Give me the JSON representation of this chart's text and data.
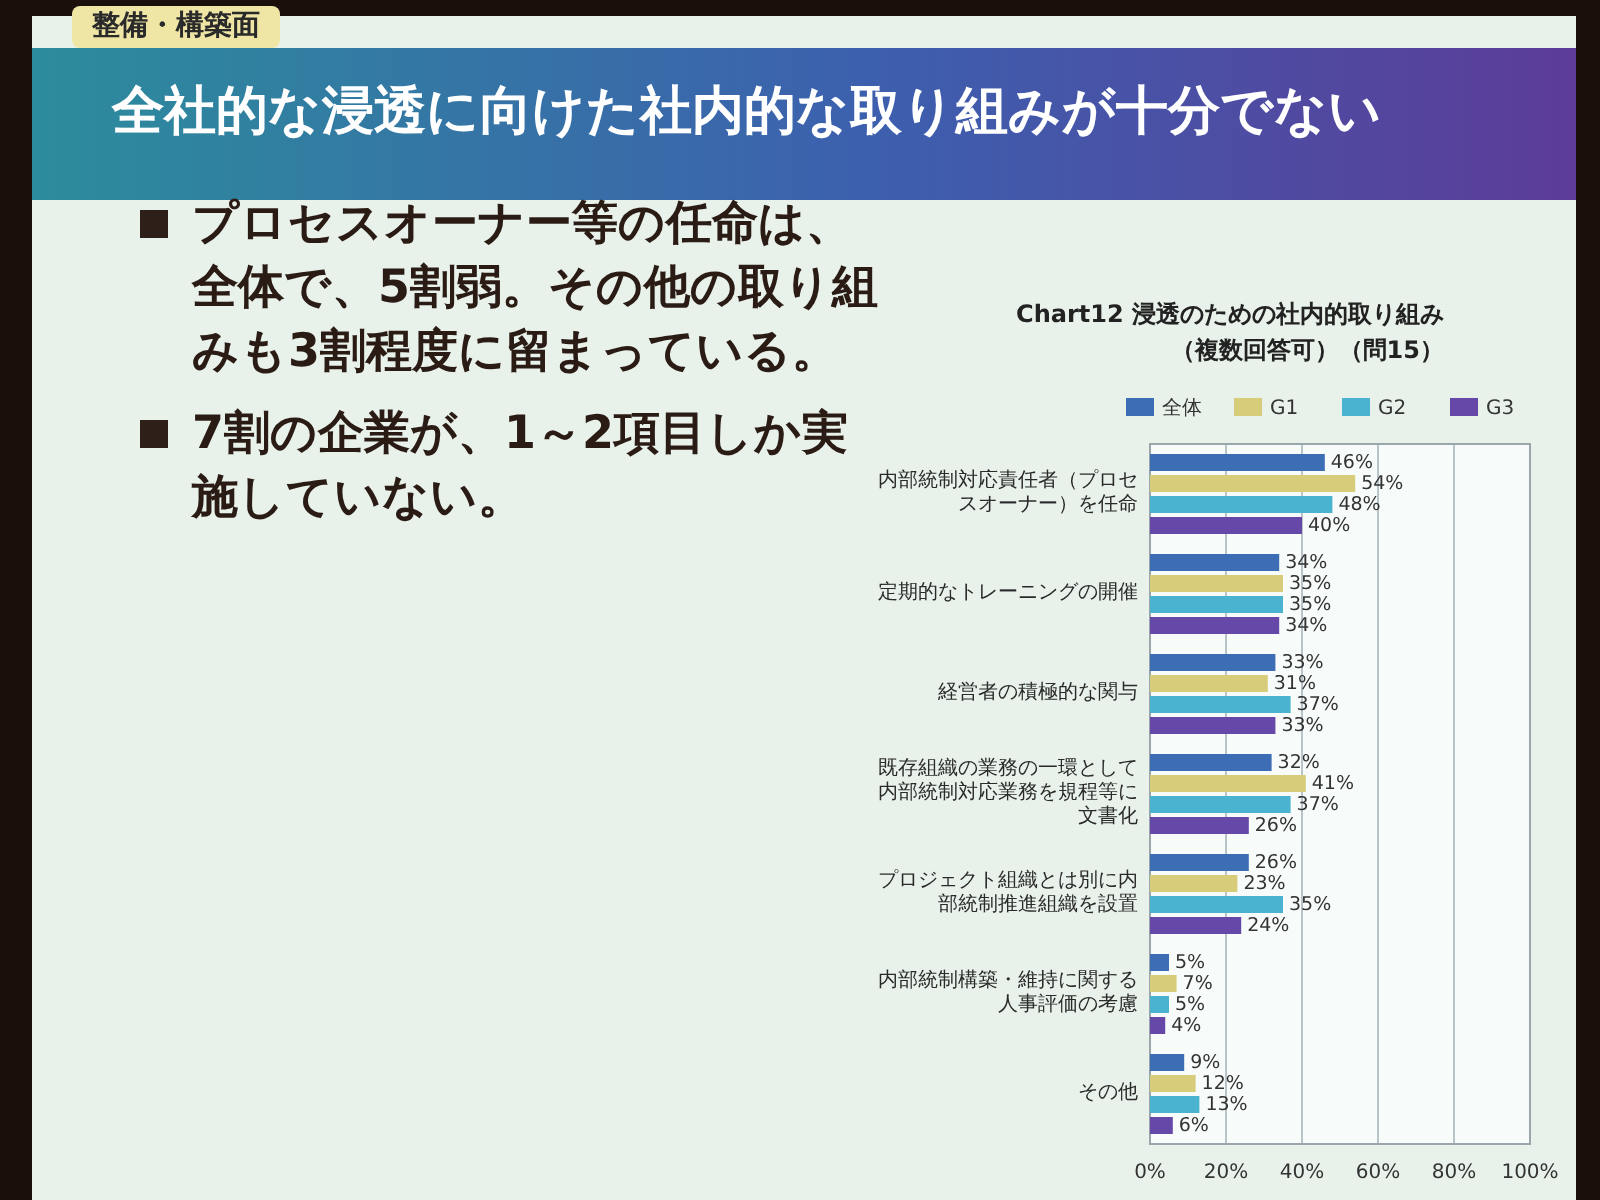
{
  "chart_data": {
    "type": "bar",
    "orientation": "horizontal",
    "title": "全社的な浸透に向けた社内的な取り組みが十分でない",
    "subtitle": "Chart12 浸透のための社内的取り組み",
    "annotations": [
      "（複数回答可）（問15）",
      "整備・構築面",
      "プロセスオーナー等の任命は、全体で、5割弱。その他の取り組みも3割程度に留まっている。",
      "7割の企業が、1～2項目しか実施していない。"
    ],
    "categories": [
      "内部統制対応責任者（プロセスオーナー）を任命",
      "定期的なトレーニングの開催",
      "経営者の積極的な関与",
      "既存組織の業務の一環として内部統制対応業務を規程等に文書化",
      "プロジェクト組織とは別に内部統制推進組織を設置",
      "内部統制構築・維持に関する人事評価の考慮",
      "その他"
    ],
    "series": [
      {
        "name": "全体",
        "color": "#3c6db5",
        "values": [
          46,
          34,
          33,
          32,
          26,
          5,
          9
        ],
        "value_labels": [
          "46%",
          "34%",
          "33%",
          "32%",
          "26%",
          "5%",
          "9%"
        ]
      },
      {
        "name": "G1",
        "color": "#d6cc7a",
        "values": [
          54,
          35,
          31,
          41,
          23,
          7,
          12
        ],
        "value_labels": [
          "54%",
          "35%",
          "31%",
          "41%",
          "23%",
          "7%",
          "12%"
        ]
      },
      {
        "name": "G2",
        "color": "#4ab3cf",
        "values": [
          48,
          35,
          37,
          37,
          35,
          5,
          13
        ],
        "value_labels": [
          "48%",
          "35%",
          "37%",
          "37%",
          "35%",
          "5%",
          "13%"
        ]
      },
      {
        "name": "G3",
        "color": "#6548a8",
        "values": [
          40,
          34,
          33,
          26,
          24,
          4,
          6
        ],
        "value_labels": [
          "40%",
          "34%",
          "33%",
          "26%",
          "24%",
          "4%",
          "6%"
        ]
      }
    ],
    "xlim": [
      0,
      100
    ],
    "xticks": [
      {
        "value": 0,
        "label": "0%"
      },
      {
        "value": 20,
        "label": "20%"
      },
      {
        "value": 40,
        "label": "40%"
      },
      {
        "value": 60,
        "label": "60%"
      },
      {
        "value": 80,
        "label": "80%"
      },
      {
        "value": 100,
        "label": "100%"
      }
    ],
    "grid": "x",
    "legend": "top"
  }
}
